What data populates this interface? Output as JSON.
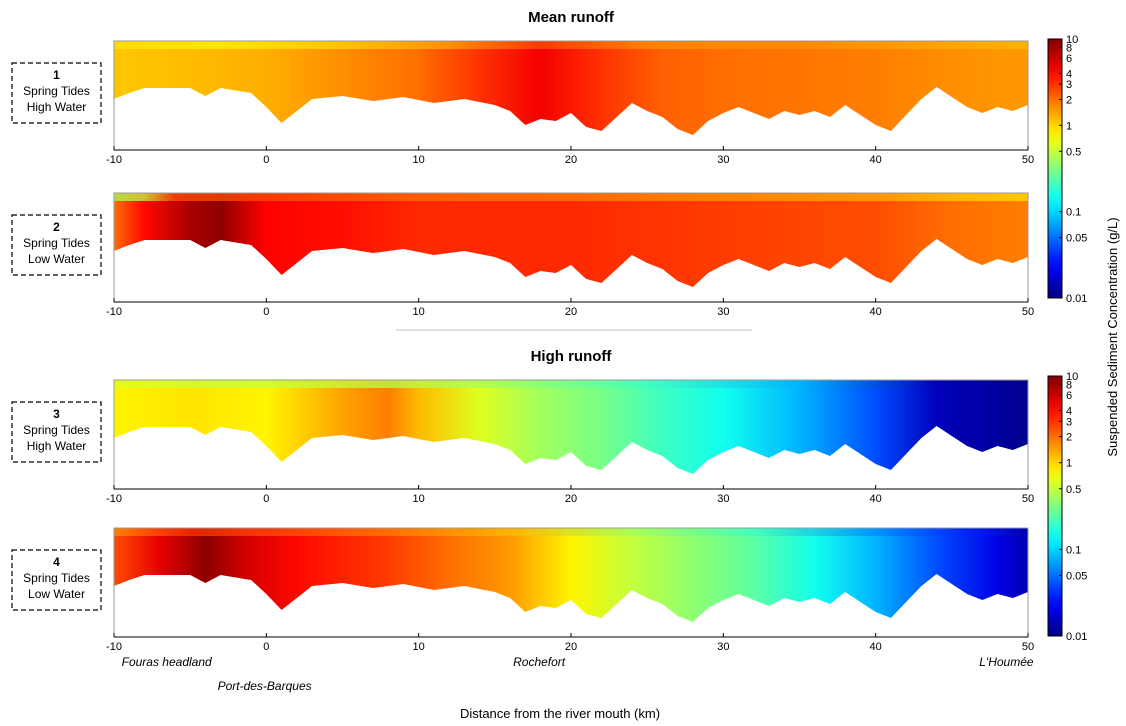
{
  "chart_data": {
    "type": "heatmap",
    "description_level": "approximate",
    "xlabel": "Distance from the river mouth (km)",
    "x_ticks": [
      "-10",
      "0",
      "10",
      "20",
      "30",
      "40",
      "50"
    ],
    "xlim": [
      -10,
      50
    ],
    "colorbar": {
      "label": "Suspended Sediment Concentration (g/L)",
      "scale": "log",
      "range": [
        0.01,
        10
      ],
      "tick_labels": [
        "10",
        "8",
        "6",
        "4",
        "3",
        "2",
        "1",
        "0.5",
        "0.1",
        "0.05",
        "0.01"
      ],
      "tick_values": [
        10,
        8,
        6,
        4,
        3,
        2,
        1,
        0.5,
        0.1,
        0.05,
        0.01
      ]
    },
    "groups": [
      {
        "title": "Mean runoff"
      },
      {
        "title": "High runoff"
      }
    ],
    "panels": [
      {
        "number": "1",
        "line1": "Spring Tides",
        "line2": "High Water"
      },
      {
        "number": "2",
        "line1": "Spring Tides",
        "line2": "Low Water"
      },
      {
        "number": "3",
        "line1": "Spring Tides",
        "line2": "High Water"
      },
      {
        "number": "4",
        "line1": "Spring Tides",
        "line2": "Low Water"
      }
    ],
    "locations": [
      {
        "name": "Fouras headland",
        "km": -9.5
      },
      {
        "name": "Port-des-Barques",
        "km": -3.2
      },
      {
        "name": "Rochefort",
        "km": 16.2
      },
      {
        "name": "L'Houmée",
        "km": 46.8
      }
    ]
  }
}
